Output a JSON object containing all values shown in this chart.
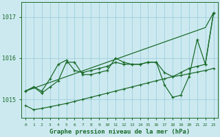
{
  "x": [
    0,
    1,
    2,
    3,
    4,
    5,
    6,
    7,
    8,
    9,
    10,
    11,
    12,
    13,
    14,
    15,
    16,
    17,
    18,
    19,
    20,
    21,
    22,
    23
  ],
  "line_smooth": [
    1015.2,
    1015.27,
    1015.34,
    1015.41,
    1015.48,
    1015.55,
    1015.62,
    1015.69,
    1015.76,
    1015.83,
    1015.9,
    1015.97,
    1016.04,
    1016.11,
    1016.18,
    1016.25,
    1016.32,
    1016.39,
    1016.46,
    1016.53,
    1016.6,
    1016.67,
    1016.74,
    1017.1
  ],
  "line_mid": [
    1015.2,
    1015.3,
    1015.2,
    1015.5,
    1015.85,
    1015.95,
    1015.7,
    1015.65,
    1015.7,
    1015.75,
    1015.8,
    1015.9,
    1015.85,
    1015.85,
    1015.85,
    1015.9,
    1015.9,
    1015.65,
    1015.55,
    1015.65,
    1015.75,
    1015.8,
    1015.85,
    1017.1
  ],
  "line_volatile": [
    1015.2,
    1015.3,
    1015.15,
    1015.3,
    1015.45,
    1015.9,
    1015.9,
    1015.6,
    1015.6,
    1015.65,
    1015.7,
    1016.0,
    1015.9,
    1015.85,
    1015.85,
    1015.9,
    1015.9,
    1015.35,
    1015.05,
    1015.1,
    1015.55,
    1016.45,
    1015.85,
    1017.1
  ],
  "line_bottom": [
    1014.85,
    1014.75,
    1014.78,
    1014.82,
    1014.86,
    1014.9,
    1014.95,
    1015.0,
    1015.05,
    1015.1,
    1015.15,
    1015.2,
    1015.25,
    1015.3,
    1015.35,
    1015.4,
    1015.45,
    1015.5,
    1015.55,
    1015.58,
    1015.62,
    1015.66,
    1015.7,
    1015.75
  ],
  "bg_color": "#cce9f0",
  "grid_color": "#9ecfdc",
  "line_color": "#1a6b2a",
  "title": "Graphe pression niveau de la mer (hPa)",
  "ylim_min": 1014.55,
  "ylim_max": 1017.35,
  "yticks": [
    1015,
    1016,
    1017
  ],
  "markersize": 3.5,
  "linewidth": 0.9
}
